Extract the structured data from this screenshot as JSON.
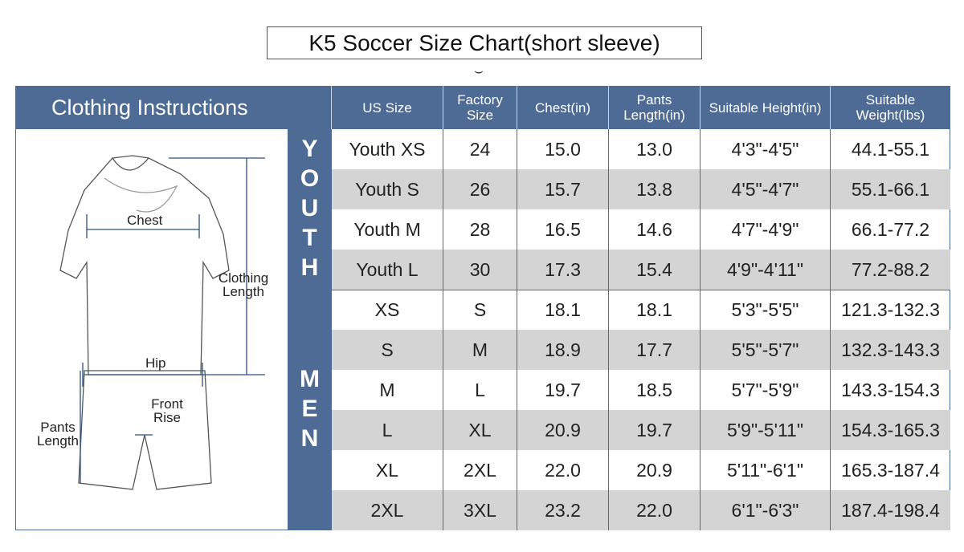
{
  "title": "K5 Soccer Size Chart(short sleeve)",
  "header": {
    "instructions": "Clothing Instructions",
    "columns": [
      "US Size",
      "Factory Size",
      "Chest(in)",
      "Pants Length(in)",
      "Suitable Height(in)",
      "Suitable Weight(lbs)"
    ]
  },
  "diagram": {
    "chest": "Chest",
    "clothing_length": "Clothing Length",
    "hip": "Hip",
    "front_rise": "Front Rise",
    "pants_length": "Pants Length"
  },
  "groups": [
    {
      "label": "YOUTH",
      "rows": [
        [
          "Youth XS",
          "24",
          "15.0",
          "13.0",
          "4'3\"-4'5\"",
          "44.1-55.1"
        ],
        [
          "Youth S",
          "26",
          "15.7",
          "13.8",
          "4'5\"-4'7\"",
          "55.1-66.1"
        ],
        [
          "Youth M",
          "28",
          "16.5",
          "14.6",
          "4'7\"-4'9\"",
          "66.1-77.2"
        ],
        [
          "Youth L",
          "30",
          "17.3",
          "15.4",
          "4'9\"-4'11\"",
          "77.2-88.2"
        ]
      ]
    },
    {
      "label": "MEN",
      "rows": [
        [
          "XS",
          "S",
          "18.1",
          "18.1",
          "5'3\"-5'5\"",
          "121.3-132.3"
        ],
        [
          "S",
          "M",
          "18.9",
          "17.7",
          "5'5\"-5'7\"",
          "132.3-143.3"
        ],
        [
          "M",
          "L",
          "19.7",
          "18.5",
          "5'7\"-5'9\"",
          "143.3-154.3"
        ],
        [
          "L",
          "XL",
          "20.9",
          "19.7",
          "5'9\"-5'11\"",
          "154.3-165.3"
        ],
        [
          "XL",
          "2XL",
          "22.0",
          "20.9",
          "5'11\"-6'1\"",
          "165.3-187.4"
        ],
        [
          "2XL",
          "3XL",
          "23.2",
          "22.0",
          "6'1\"-6'3\"",
          "187.4-198.4"
        ]
      ]
    }
  ],
  "colors": {
    "header": "#4e6b95",
    "stripe": "#d4d4d4"
  }
}
